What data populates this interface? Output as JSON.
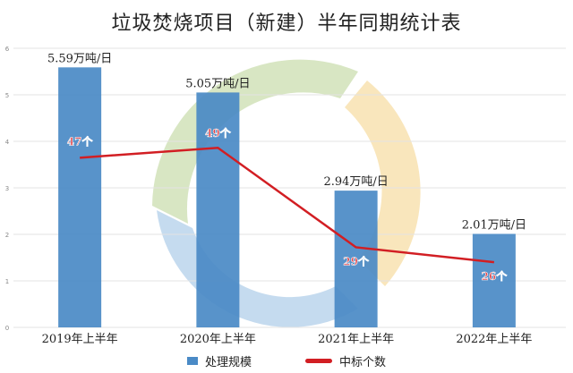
{
  "chart_data": {
    "type": "bar+line",
    "title": "垃圾焚烧项目（新建）半年同期统计表",
    "categories": [
      "2019年上半年",
      "2020年上半年",
      "2021年上半年",
      "2022年上半年"
    ],
    "ylim": [
      0,
      6
    ],
    "yticks": [
      "0",
      "1",
      "2",
      "3",
      "4",
      "5",
      "6"
    ],
    "grid": true,
    "legend_placement": "bottom",
    "series": [
      {
        "name": "处理规模",
        "type": "bar",
        "values": [
          5.59,
          5.05,
          2.94,
          2.01
        ],
        "labels": [
          "5.59万吨/日",
          "5.05万吨/日",
          "2.94万吨/日",
          "2.01万吨/日"
        ],
        "color": "#4a8ac6"
      },
      {
        "name": "中标个数",
        "type": "line",
        "values": [
          47,
          49,
          29,
          26
        ],
        "labels": [
          "47个",
          "49个",
          "29个",
          "26个"
        ],
        "color": "#d21e23"
      }
    ]
  }
}
